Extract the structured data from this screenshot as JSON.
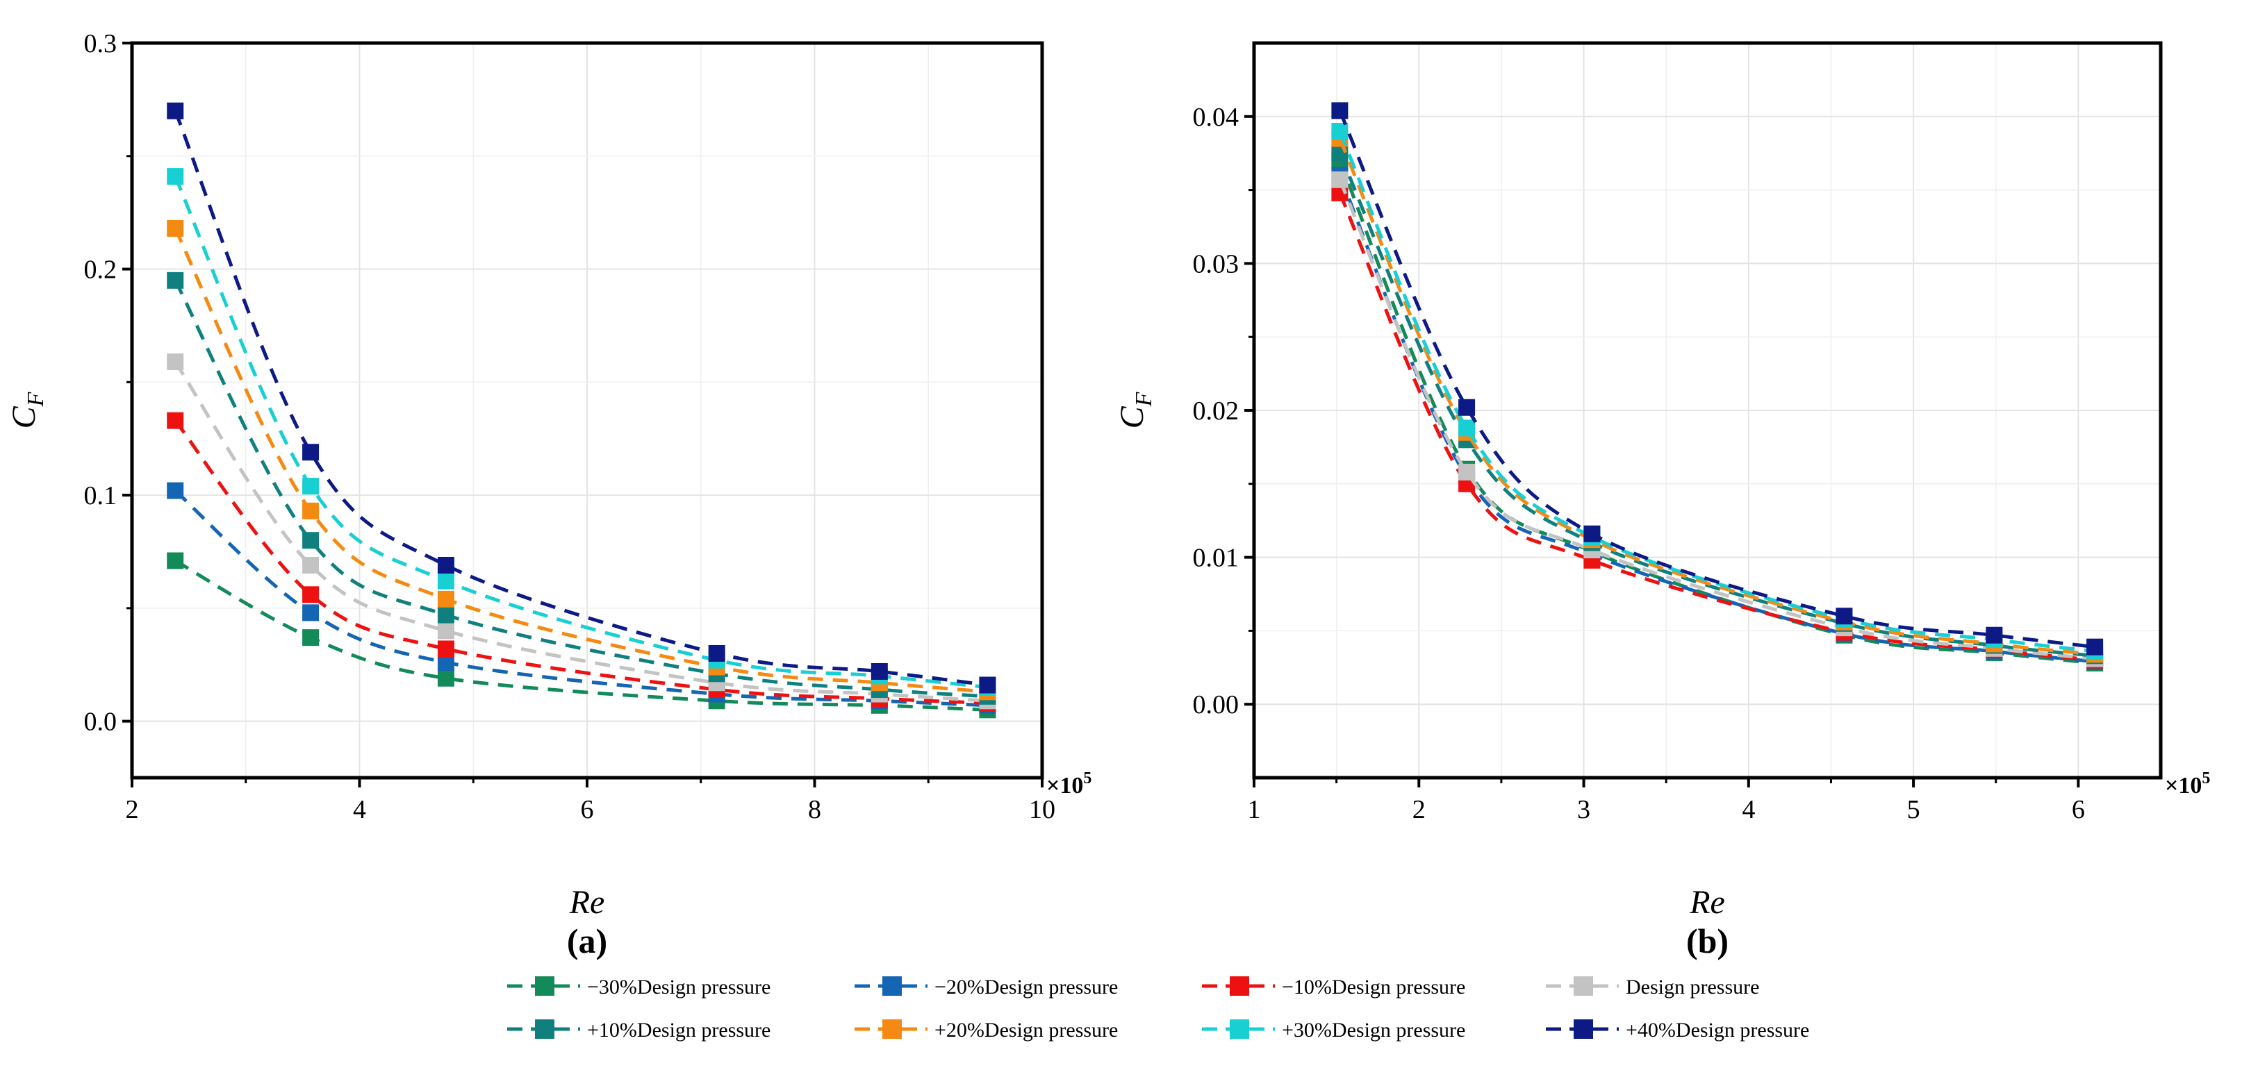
{
  "chart_data": [
    {
      "type": "line",
      "panel_label": "(a)",
      "xlabel": "Re",
      "ylabel": "C",
      "ylabel_sub": "F",
      "x_multiplier": "×10",
      "x_multiplier_exp": "5",
      "xlim": [
        2,
        10
      ],
      "ylim": [
        -0.025,
        0.3
      ],
      "x_ticks": [
        "2",
        "4",
        "6",
        "8",
        "10"
      ],
      "y_ticks": [
        "0.0",
        "0.1",
        "0.2",
        "0.3"
      ],
      "grid": true,
      "x": [
        2.38,
        3.57,
        4.76,
        7.14,
        8.57,
        9.52
      ],
      "series": [
        {
          "name": "−30%Design pressure",
          "color": "#138a5a",
          "values": [
            0.071,
            0.037,
            0.019,
            0.009,
            0.007,
            0.005
          ]
        },
        {
          "name": "−20%Design pressure",
          "color": "#1565b5",
          "values": [
            0.102,
            0.048,
            0.026,
            0.012,
            0.009,
            0.007
          ]
        },
        {
          "name": "−10%Design pressure",
          "color": "#ee1111",
          "values": [
            0.133,
            0.056,
            0.032,
            0.014,
            0.01,
            0.008
          ]
        },
        {
          "name": "Design pressure",
          "color": "#c3c3c3",
          "values": [
            0.159,
            0.069,
            0.04,
            0.017,
            0.012,
            0.009
          ]
        },
        {
          "name": "+10%Design pressure",
          "color": "#10807f",
          "values": [
            0.195,
            0.08,
            0.047,
            0.021,
            0.014,
            0.011
          ]
        },
        {
          "name": "+20%Design pressure",
          "color": "#f58a12",
          "values": [
            0.218,
            0.093,
            0.054,
            0.024,
            0.017,
            0.013
          ]
        },
        {
          "name": "+30%Design pressure",
          "color": "#18cfd4",
          "values": [
            0.241,
            0.104,
            0.062,
            0.027,
            0.02,
            0.015
          ]
        },
        {
          "name": "+40%Design pressure",
          "color": "#0d1a86",
          "values": [
            0.27,
            0.119,
            0.069,
            0.03,
            0.022,
            0.016
          ]
        }
      ]
    },
    {
      "type": "line",
      "panel_label": "(b)",
      "xlabel": "Re",
      "ylabel": "C",
      "ylabel_sub": "F",
      "x_multiplier": "×10",
      "x_multiplier_exp": "5",
      "xlim": [
        1,
        6.5
      ],
      "ylim": [
        -0.005,
        0.045
      ],
      "x_ticks": [
        "1",
        "2",
        "3",
        "4",
        "5",
        "6"
      ],
      "y_ticks": [
        "0.00",
        "0.01",
        "0.02",
        "0.03",
        "0.04"
      ],
      "grid": true,
      "x": [
        1.52,
        2.29,
        3.05,
        4.58,
        5.49,
        6.1
      ],
      "series": [
        {
          "name": "−30%Design pressure",
          "color": "#138a5a",
          "values": [
            0.037,
            0.016,
            0.0104,
            0.0047,
            0.0035,
            0.0028
          ]
        },
        {
          "name": "−20%Design pressure",
          "color": "#1565b5",
          "values": [
            0.036,
            0.0155,
            0.0102,
            0.0048,
            0.0036,
            0.0029
          ]
        },
        {
          "name": "−10%Design pressure",
          "color": "#ee1111",
          "values": [
            0.0348,
            0.015,
            0.0098,
            0.0049,
            0.0037,
            0.003
          ]
        },
        {
          "name": "Design pressure",
          "color": "#c3c3c3",
          "values": [
            0.0357,
            0.0158,
            0.0105,
            0.0052,
            0.0038,
            0.0031
          ]
        },
        {
          "name": "+10%Design pressure",
          "color": "#10807f",
          "values": [
            0.0375,
            0.018,
            0.011,
            0.0055,
            0.004,
            0.0033
          ]
        },
        {
          "name": "+20%Design pressure",
          "color": "#f58a12",
          "values": [
            0.0385,
            0.0185,
            0.0112,
            0.0056,
            0.0041,
            0.0034
          ]
        },
        {
          "name": "+30%Design pressure",
          "color": "#18cfd4",
          "values": [
            0.039,
            0.0188,
            0.0114,
            0.0058,
            0.0044,
            0.0036
          ]
        },
        {
          "name": "+40%Design pressure",
          "color": "#0d1a86",
          "values": [
            0.0404,
            0.0202,
            0.0116,
            0.006,
            0.0047,
            0.0039
          ]
        }
      ]
    }
  ],
  "legend": {
    "position": "bottom-center",
    "items": [
      {
        "name": "−30%Design pressure",
        "color": "#138a5a"
      },
      {
        "name": "−20%Design pressure",
        "color": "#1565b5"
      },
      {
        "name": "−10%Design pressure",
        "color": "#ee1111"
      },
      {
        "name": "Design pressure",
        "color": "#c3c3c3"
      },
      {
        "name": "+10%Design pressure",
        "color": "#10807f"
      },
      {
        "name": "+20%Design pressure",
        "color": "#f58a12"
      },
      {
        "name": "+30%Design pressure",
        "color": "#18cfd4"
      },
      {
        "name": "+40%Design pressure",
        "color": "#0d1a86"
      }
    ]
  }
}
